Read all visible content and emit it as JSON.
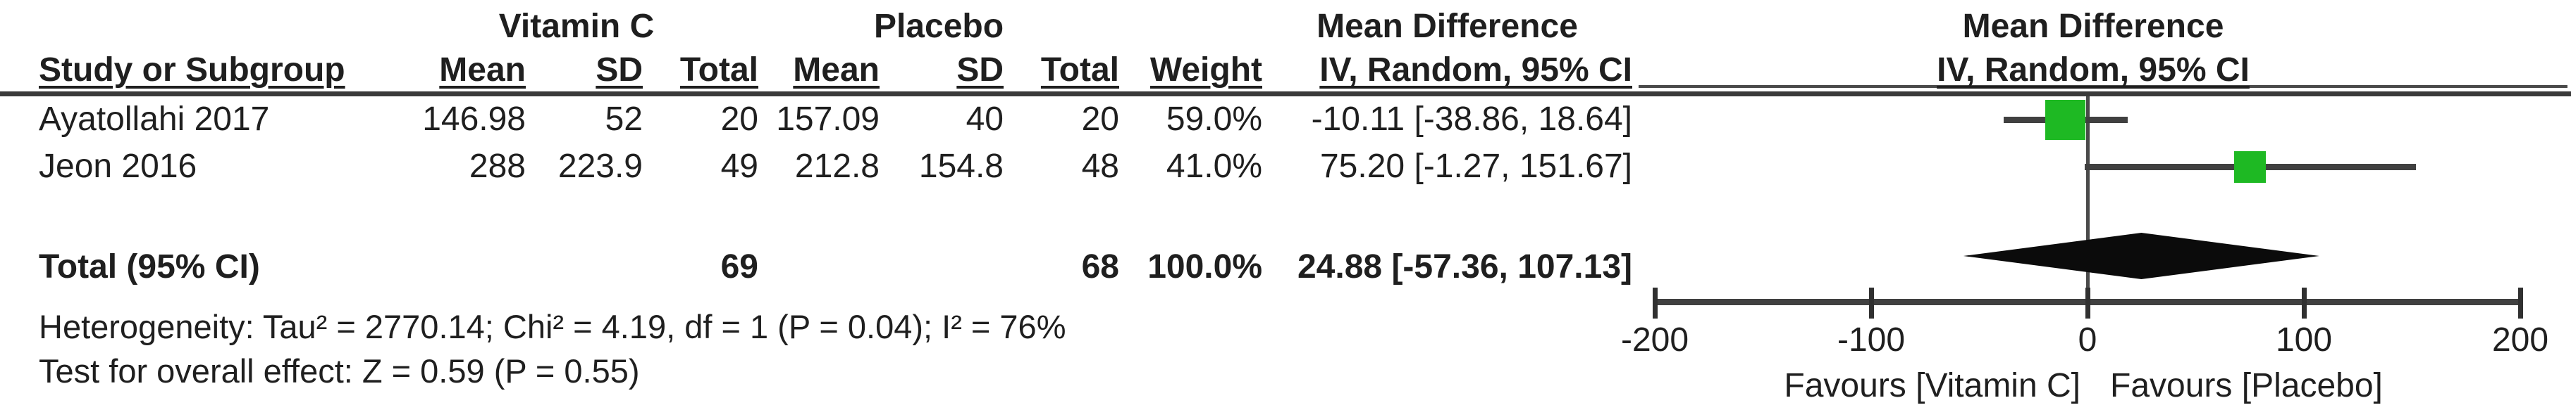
{
  "table": {
    "group_headers": {
      "treatment": "Vitamin C",
      "control": "Placebo",
      "effect": "Mean Difference",
      "plot_effect": "Mean Difference"
    },
    "column_headers": {
      "study": "Study or Subgroup",
      "mean": "Mean",
      "sd": "SD",
      "total": "Total",
      "weight": "Weight",
      "ci": "IV, Random, 95% CI",
      "plot_ci": "IV, Random, 95% CI"
    },
    "rows": [
      {
        "study": "Ayatollahi 2017",
        "mean1": "146.98",
        "sd1": "52",
        "total1": "20",
        "mean2": "157.09",
        "sd2": "40",
        "total2": "20",
        "weight": "59.0%",
        "ci": "-10.11 [-38.86, 18.64]"
      },
      {
        "study": "Jeon 2016",
        "mean1": "288",
        "sd1": "223.9",
        "total1": "49",
        "mean2": "212.8",
        "sd2": "154.8",
        "total2": "48",
        "weight": "41.0%",
        "ci": "75.20 [-1.27, 151.67]"
      }
    ],
    "total_row": {
      "label": "Total (95% CI)",
      "total1": "69",
      "total2": "68",
      "weight": "100.0%",
      "ci": "24.88 [-57.36, 107.13]"
    },
    "footnotes": {
      "heterogeneity": "Heterogeneity: Tau² = 2770.14; Chi² = 4.19, df = 1 (P = 0.04); I² = 76%",
      "overall_effect": "Test for overall effect: Z = 0.59 (P = 0.55)"
    }
  },
  "chart_data": {
    "type": "forest",
    "title": "Mean Difference",
    "subtitle": "IV, Random, 95% CI",
    "effect_measure": "Mean Difference, IV, Random, 95% CI",
    "x_axis": {
      "min": -200,
      "max": 200,
      "ticks": [
        -200,
        -100,
        0,
        100,
        200
      ],
      "left_label": "Favours [Vitamin C]",
      "right_label": "Favours [Placebo]"
    },
    "studies": [
      {
        "name": "Ayatollahi 2017",
        "estimate": -10.11,
        "ci_lower": -38.86,
        "ci_upper": 18.64,
        "weight_pct": 59.0
      },
      {
        "name": "Jeon 2016",
        "estimate": 75.2,
        "ci_lower": -1.27,
        "ci_upper": 151.67,
        "weight_pct": 41.0
      }
    ],
    "overall": {
      "label": "Total (95% CI)",
      "estimate": 24.88,
      "ci_lower": -57.36,
      "ci_upper": 107.13
    },
    "colors": {
      "marker": "#1eb923",
      "line": "#404040",
      "diamond": "#0b0b0b",
      "text": "#1f1f1f"
    }
  }
}
